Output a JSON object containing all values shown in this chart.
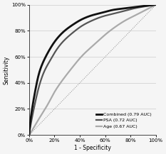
{
  "title": "",
  "xlabel": "1 - Specificity",
  "ylabel": "Sensitivity",
  "xlim": [
    0,
    1
  ],
  "ylim": [
    0,
    1
  ],
  "xtick_labels": [
    "0%",
    "20%",
    "40%",
    "60%",
    "80%",
    "100%"
  ],
  "ytick_labels": [
    "0%",
    "20%",
    "40%",
    "60%",
    "80%",
    "100%"
  ],
  "xticks": [
    0.0,
    0.2,
    0.4,
    0.6,
    0.8,
    1.0
  ],
  "yticks": [
    0.0,
    0.2,
    0.4,
    0.6,
    0.8,
    1.0
  ],
  "legend_entries": [
    {
      "label": "Combined (0.79 AUC)",
      "color": "#111111",
      "lw": 2.0
    },
    {
      "label": "PSA (0.72 AUC)",
      "color": "#555555",
      "lw": 1.6
    },
    {
      "label": "Age (0.67 AUC)",
      "color": "#aaaaaa",
      "lw": 1.6
    }
  ],
  "diagonal_color": "#888888",
  "diagonal_lw": 0.7,
  "diagonal_ls": "dotted",
  "grid_color": "#cccccc",
  "background_color": "#f5f5f5",
  "combined_auc": 0.79,
  "psa_auc": 0.72,
  "age_auc": 0.67,
  "combined_fpr": [
    0.0,
    0.02,
    0.05,
    0.08,
    0.12,
    0.17,
    0.22,
    0.28,
    0.35,
    0.42,
    0.5,
    0.58,
    0.66,
    0.74,
    0.82,
    0.9,
    0.95,
    1.0
  ],
  "combined_tpr": [
    0.0,
    0.18,
    0.35,
    0.48,
    0.58,
    0.67,
    0.74,
    0.8,
    0.85,
    0.89,
    0.92,
    0.94,
    0.96,
    0.97,
    0.98,
    0.99,
    0.995,
    1.0
  ],
  "psa_fpr": [
    0.0,
    0.02,
    0.05,
    0.08,
    0.12,
    0.17,
    0.22,
    0.28,
    0.35,
    0.42,
    0.5,
    0.58,
    0.66,
    0.74,
    0.82,
    0.9,
    0.95,
    1.0
  ],
  "psa_tpr": [
    0.0,
    0.12,
    0.26,
    0.38,
    0.49,
    0.58,
    0.66,
    0.73,
    0.79,
    0.84,
    0.88,
    0.91,
    0.93,
    0.95,
    0.97,
    0.985,
    0.993,
    1.0
  ],
  "age_fpr": [
    0.0,
    0.02,
    0.05,
    0.1,
    0.15,
    0.2,
    0.27,
    0.35,
    0.43,
    0.52,
    0.6,
    0.68,
    0.76,
    0.84,
    0.9,
    0.95,
    0.98,
    1.0
  ],
  "age_tpr": [
    0.0,
    0.03,
    0.08,
    0.16,
    0.24,
    0.33,
    0.43,
    0.53,
    0.62,
    0.7,
    0.77,
    0.83,
    0.88,
    0.92,
    0.95,
    0.975,
    0.99,
    1.0
  ]
}
